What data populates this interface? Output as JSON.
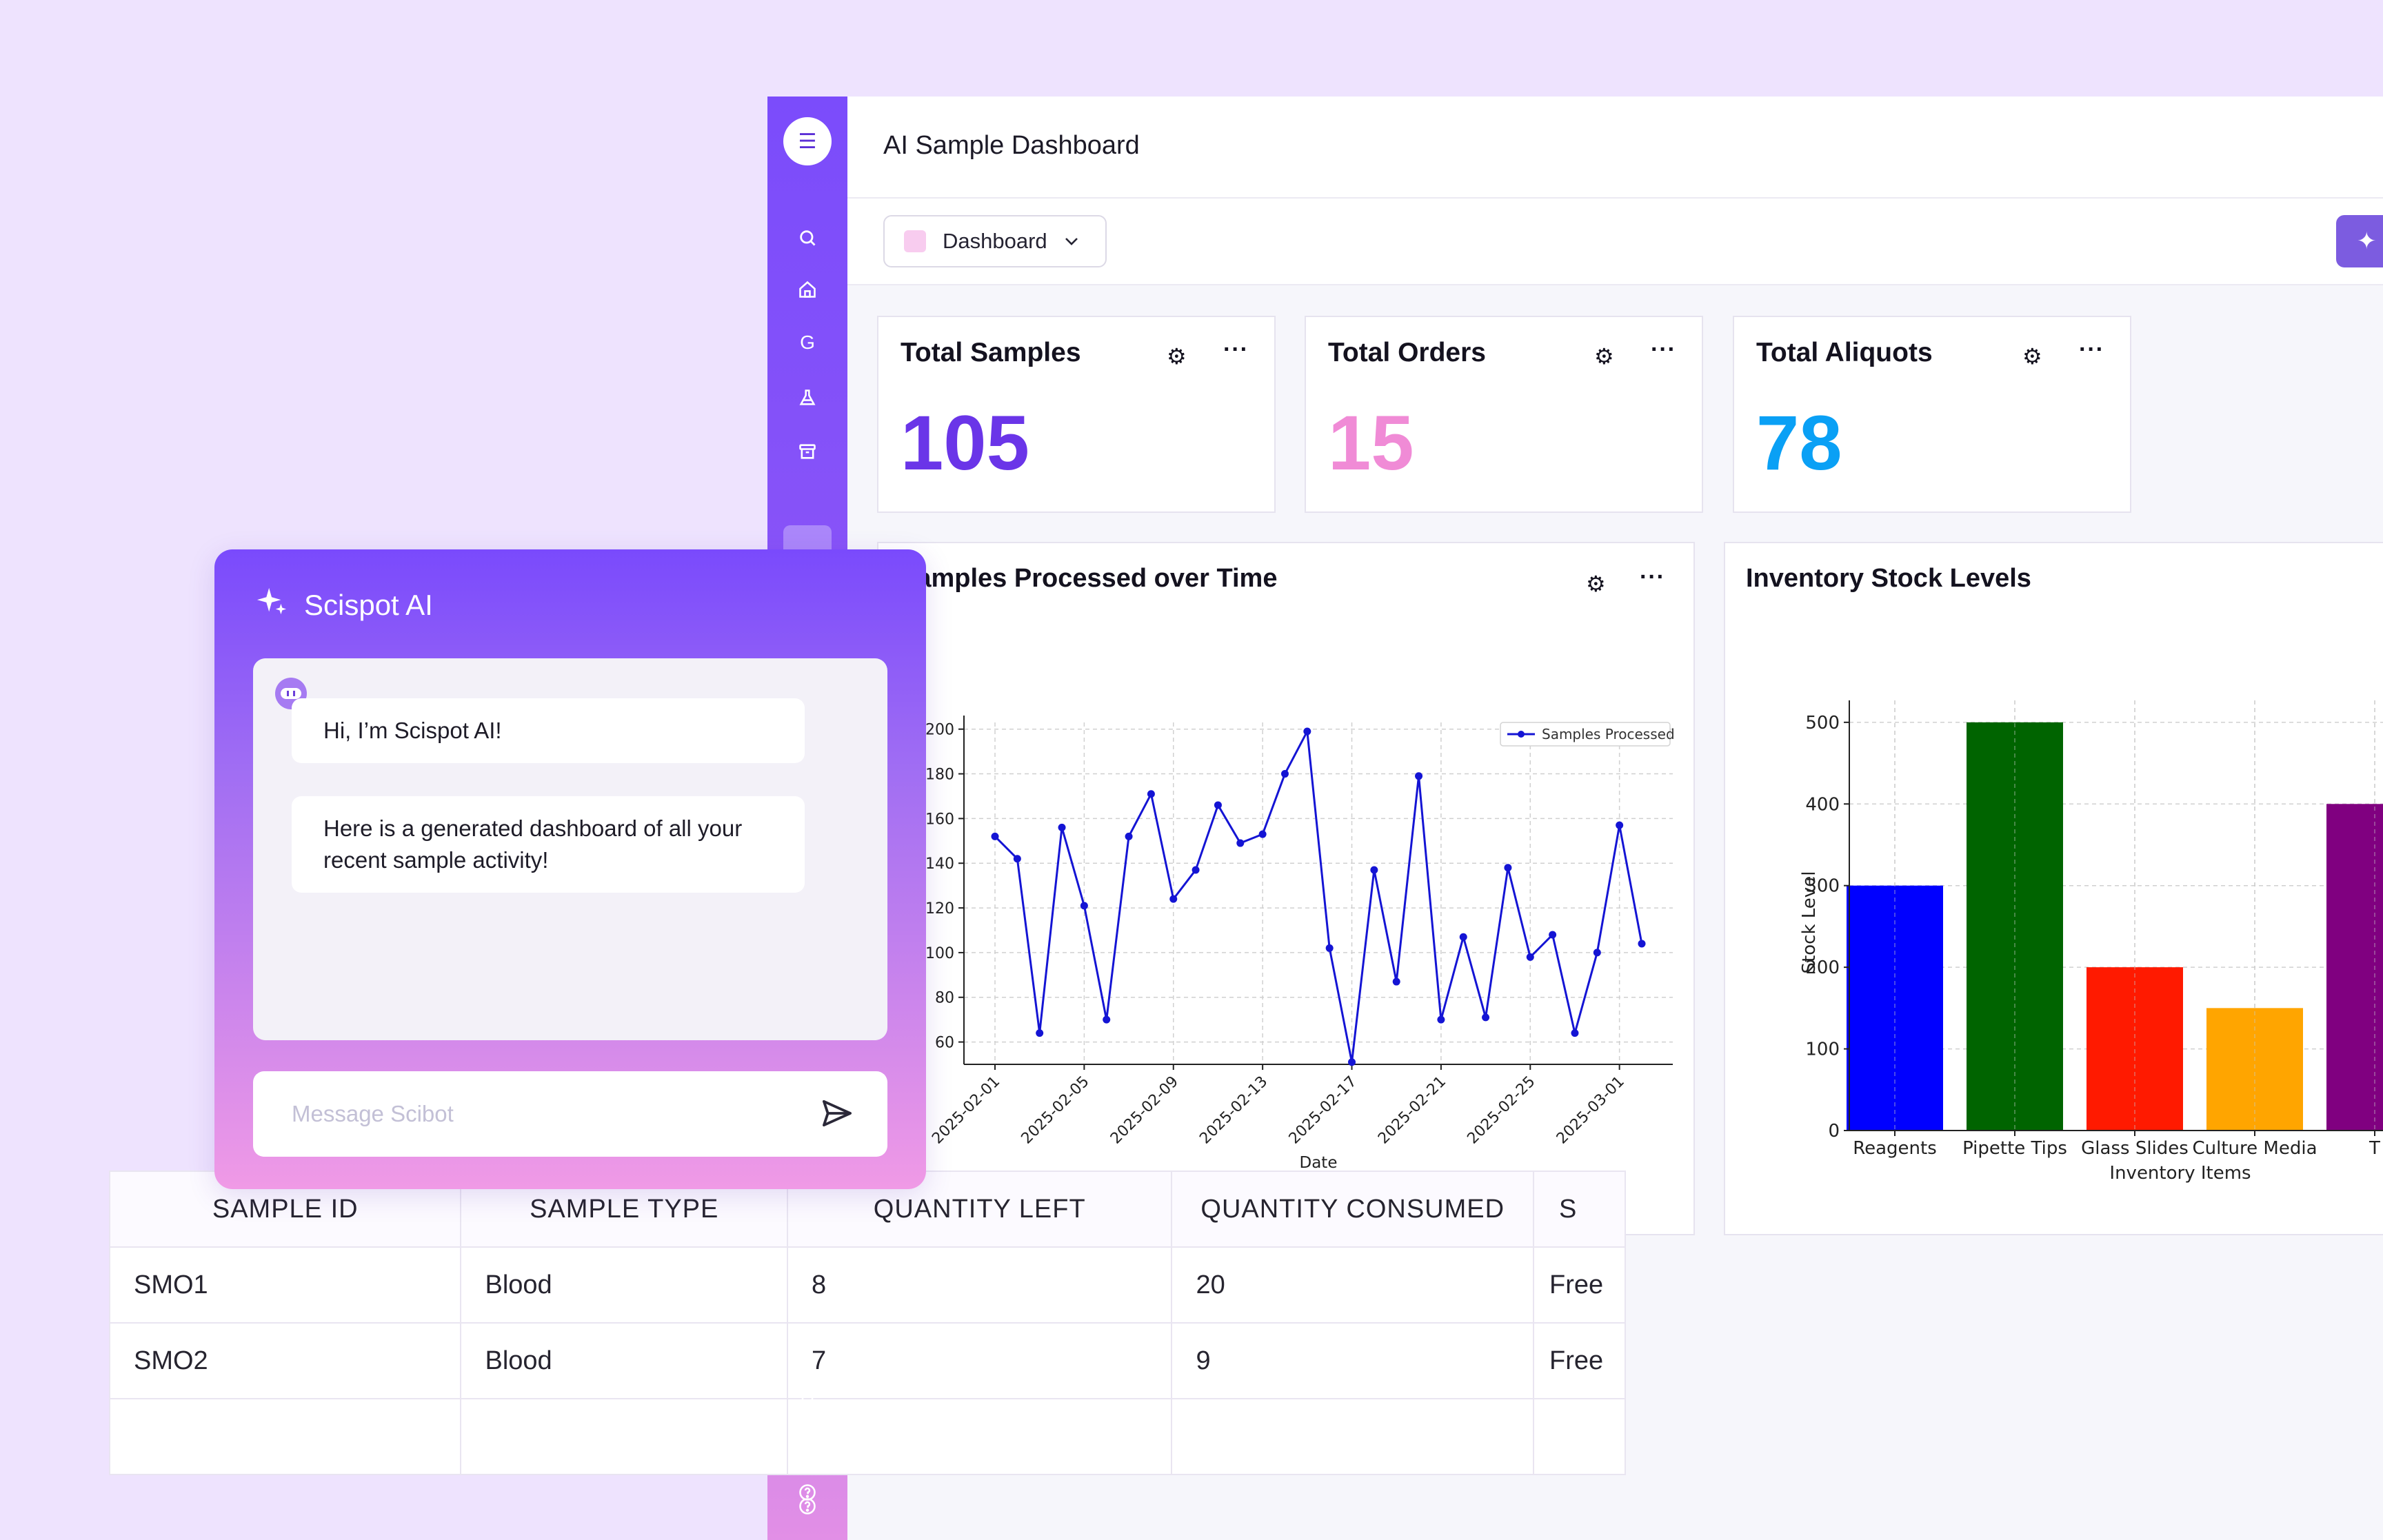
{
  "app": {
    "title": "AI Sample Dashboard",
    "dashboard_selector": "Dashboard",
    "sidebar_icons": [
      "menu-icon",
      "search-icon",
      "home-icon",
      "g-icon",
      "flask-icon",
      "archive-icon",
      "document-icon",
      "bell-icon",
      "message-icon",
      "help-icon"
    ]
  },
  "stats": [
    {
      "title": "Total Samples",
      "value": "105",
      "color": "#6A35E8"
    },
    {
      "title": "Total Orders",
      "value": "15",
      "color": "#F08BD6"
    },
    {
      "title": "Total Aliquots",
      "value": "78",
      "color": "#0AA0F5"
    }
  ],
  "line_card": {
    "title": "Samples Processed over Time"
  },
  "bar_card": {
    "title": "Inventory Stock Levels"
  },
  "chart_data": [
    {
      "type": "line",
      "xlabel": "Date",
      "ylabel": "",
      "legend": "top-right",
      "grid": true,
      "ylim": [
        50,
        203
      ],
      "yticks": [
        60,
        80,
        100,
        120,
        140,
        160,
        180,
        200
      ],
      "xtick_labels": [
        "2025-02-01",
        "2025-02-05",
        "2025-02-09",
        "2025-02-13",
        "2025-02-17",
        "2025-02-21",
        "2025-02-25",
        "2025-03-01"
      ],
      "x": [
        "2025-02-01",
        "2025-02-02",
        "2025-02-03",
        "2025-02-04",
        "2025-02-05",
        "2025-02-06",
        "2025-02-07",
        "2025-02-08",
        "2025-02-09",
        "2025-02-10",
        "2025-02-11",
        "2025-02-12",
        "2025-02-13",
        "2025-02-14",
        "2025-02-15",
        "2025-02-16",
        "2025-02-17",
        "2025-02-18",
        "2025-02-19",
        "2025-02-20",
        "2025-02-21",
        "2025-02-22",
        "2025-02-23",
        "2025-02-24",
        "2025-02-25",
        "2025-02-26",
        "2025-02-27",
        "2025-02-28",
        "2025-03-01",
        "2025-03-02"
      ],
      "series": [
        {
          "name": "Samples Processed",
          "color": "#1414D4",
          "values": [
            152,
            142,
            64,
            156,
            121,
            70,
            152,
            171,
            124,
            137,
            166,
            149,
            153,
            180,
            199,
            102,
            51,
            137,
            87,
            179,
            70,
            107,
            71,
            138,
            98,
            108,
            64,
            100,
            157,
            104
          ]
        }
      ]
    },
    {
      "type": "bar",
      "xlabel": "Inventory Items",
      "ylabel": "Stock Level",
      "grid": true,
      "ylim": [
        0,
        510
      ],
      "yticks": [
        0,
        100,
        200,
        300,
        400,
        500
      ],
      "categories": [
        "Reagents",
        "Pipette Tips",
        "Glass Slides",
        "Culture Media",
        "T"
      ],
      "values": [
        300,
        500,
        200,
        150,
        400
      ],
      "colors": [
        "#0000FF",
        "#006400",
        "#FF1A00",
        "#FFA500",
        "#800080"
      ]
    }
  ],
  "table": {
    "headers": [
      "SAMPLE ID",
      "SAMPLE TYPE",
      "QUANTITY LEFT",
      "QUANTITY CONSUMED",
      "S"
    ],
    "rows": [
      [
        "SMO1",
        "Blood",
        "8",
        "20",
        "Free"
      ],
      [
        "SMO2",
        "Blood",
        "7",
        "9",
        "Free"
      ],
      [
        "",
        "",
        "",
        "",
        ""
      ]
    ]
  },
  "chat": {
    "title": "Scispot AI",
    "messages": [
      "Hi, I’m Scispot AI!",
      "Here is a generated dashboard of all your recent sample activity!"
    ],
    "input_placeholder": "Message Scibot"
  }
}
